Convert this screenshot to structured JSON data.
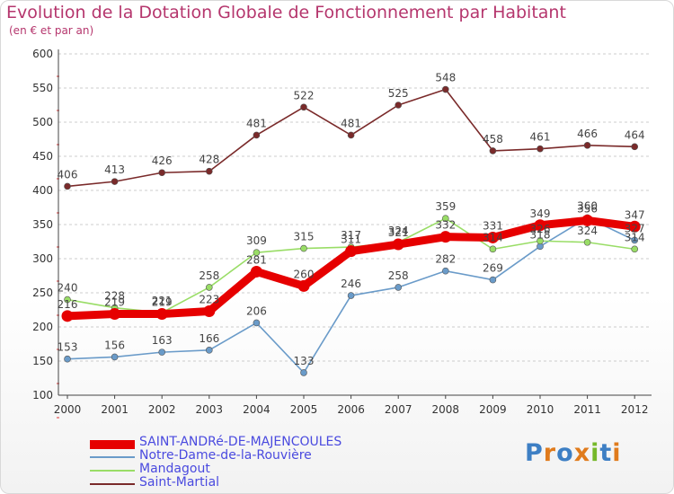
{
  "title": "Evolution de la Dotation Globale de Fonctionnement par Habitant",
  "subtitle": "(en € et par an)",
  "logo_text": "Proxiti",
  "chart_data": {
    "type": "line",
    "x": [
      "2000",
      "2001",
      "2002",
      "2003",
      "2004",
      "2005",
      "2006",
      "2007",
      "2008",
      "2009",
      "2010",
      "2011",
      "2012"
    ],
    "ylim": [
      100,
      600
    ],
    "yticks": [
      100,
      150,
      200,
      250,
      300,
      350,
      400,
      450,
      500,
      550,
      600
    ],
    "grid": "horizontal dashed",
    "legend_position": "bottom-left",
    "series": [
      {
        "name": "SAINT-ANDRé-DE-MAJENCOULES",
        "color": "#e60000",
        "values": [
          216,
          219,
          219,
          223,
          281,
          260,
          311,
          321,
          332,
          331,
          349,
          356,
          347
        ]
      },
      {
        "name": "Notre-Dame-de-la-Rouvière",
        "color": "#6a9bc9",
        "values": [
          153,
          156,
          163,
          166,
          206,
          133,
          246,
          258,
          282,
          269,
          318,
          360,
          327
        ]
      },
      {
        "name": "Mandagout",
        "color": "#99dd66",
        "values": [
          240,
          228,
          221,
          258,
          309,
          315,
          317,
          324,
          359,
          314,
          326,
          324,
          314
        ]
      },
      {
        "name": "Saint-Martial",
        "color": "#7a2a2a",
        "values": [
          406,
          413,
          426,
          428,
          481,
          522,
          481,
          525,
          548,
          458,
          461,
          466,
          464
        ]
      }
    ]
  }
}
